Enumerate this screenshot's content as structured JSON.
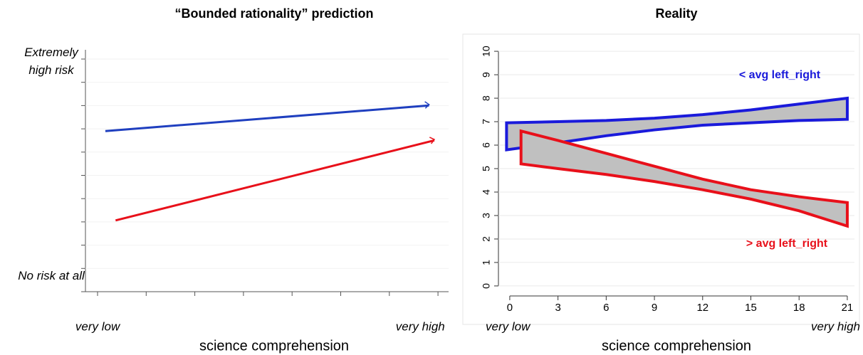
{
  "chart_data": [
    {
      "type": "line",
      "title": "“Bounded rationality” prediction",
      "xlabel": "science comprehension",
      "xlim": [
        -0.25,
        7.37
      ],
      "ylim": [
        -0.31,
        10.7
      ],
      "xticks": [
        {
          "value": 0,
          "label": "very low"
        },
        {
          "value": 7,
          "label": "very high"
        }
      ],
      "yticks": [
        {
          "value": 0,
          "label": "No risk at all"
        },
        {
          "value": 10,
          "label": "Extremely high risk"
        }
      ],
      "arrows": true,
      "series": [
        {
          "name": null,
          "color": "#1f3fbf",
          "x": [
            0.16,
            6.82
          ],
          "values": [
            6.9,
            8.0
          ]
        },
        {
          "name": null,
          "color": "#e8101a",
          "x": [
            0.37,
            6.93
          ],
          "values": [
            3.06,
            6.5
          ]
        }
      ]
    },
    {
      "type": "band",
      "title": "Reality",
      "xlabel": "science comprehension",
      "x_end_labels": [
        "very low",
        "very high"
      ],
      "xlim": [
        -2.92,
        21.8
      ],
      "ylim": [
        -1.64,
        10.73
      ],
      "xticks": [
        0,
        3,
        6,
        9,
        12,
        15,
        18,
        21
      ],
      "yticks": [
        0,
        1,
        2,
        3,
        4,
        5,
        6,
        7,
        8,
        9,
        10
      ],
      "grid": true,
      "series": [
        {
          "name": "< avg left_right",
          "color": "#1a1adb",
          "x": [
            -0.2,
            3,
            6,
            9,
            12,
            15,
            18,
            21
          ],
          "upper": [
            6.95,
            7.0,
            7.05,
            7.15,
            7.3,
            7.5,
            7.75,
            8.0
          ],
          "lower": [
            5.8,
            6.1,
            6.4,
            6.65,
            6.85,
            6.95,
            7.05,
            7.1
          ]
        },
        {
          "name": "> avg left_right",
          "color": "#e8101a",
          "x": [
            0.7,
            3,
            6,
            9,
            12,
            15,
            18,
            21
          ],
          "upper": [
            6.6,
            6.2,
            5.65,
            5.1,
            4.55,
            4.1,
            3.8,
            3.55
          ],
          "lower": [
            5.2,
            5.0,
            4.75,
            4.45,
            4.1,
            3.7,
            3.2,
            2.55
          ]
        }
      ]
    }
  ]
}
